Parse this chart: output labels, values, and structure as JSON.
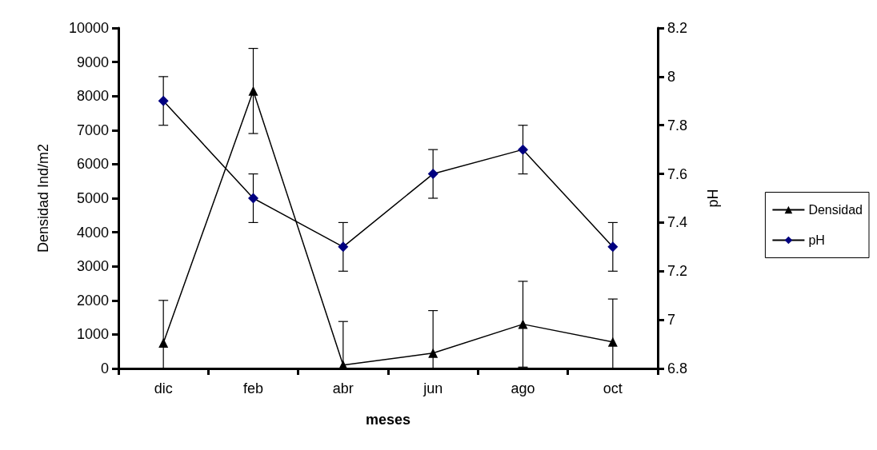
{
  "chart_data": {
    "type": "line",
    "xlabel": "meses",
    "ylabel": "Densidad Ind/m2",
    "y2label": "pH",
    "categories": [
      "dic",
      "feb",
      "abr",
      "jun",
      "ago",
      "oct"
    ],
    "series": [
      {
        "name": "Densidad",
        "color": "#000000",
        "marker": "triangle",
        "values": [
          750,
          8150,
          100,
          450,
          1300,
          780
        ],
        "errors": [
          1250,
          1250,
          1280,
          1250,
          1260,
          1260
        ]
      },
      {
        "name": "pH",
        "color": "#000080",
        "marker": "diamond",
        "axis": "y2",
        "values": [
          7.9,
          7.5,
          7.3,
          7.6,
          7.7,
          7.3
        ],
        "errors": [
          0.1,
          0.1,
          0.1,
          0.1,
          0.1,
          0.1
        ]
      }
    ],
    "ylim": [
      0,
      10000
    ],
    "yticks": [
      0,
      1000,
      2000,
      3000,
      4000,
      5000,
      6000,
      7000,
      8000,
      9000,
      10000
    ],
    "y2lim": [
      6.8,
      8.2
    ],
    "y2ticks": [
      6.8,
      7,
      7.2,
      7.4,
      7.6,
      7.8,
      8,
      8.2
    ],
    "legend": "right",
    "grid": false,
    "line_style": "solid"
  }
}
